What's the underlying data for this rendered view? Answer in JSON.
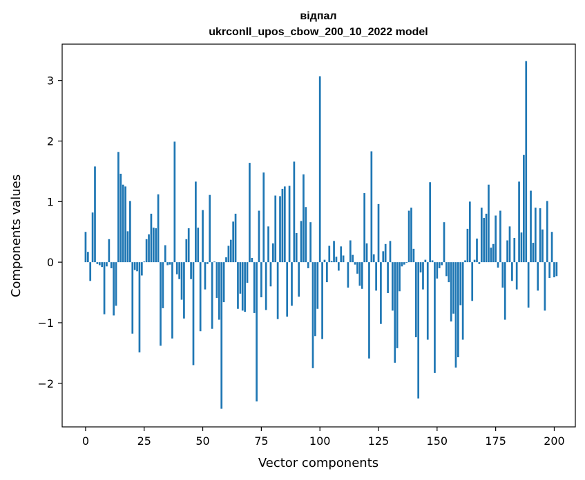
{
  "chart_data": {
    "type": "bar",
    "title": "відпал",
    "subtitle": "ukrconll_upos_cbow_200_10_2022 model",
    "xlabel": "Vector components",
    "ylabel": "Components values",
    "xlim": [
      -10,
      209
    ],
    "ylim": [
      -2.72,
      3.6
    ],
    "xticks": [
      0,
      25,
      50,
      75,
      100,
      125,
      150,
      175,
      200
    ],
    "yticks": [
      -2,
      -1,
      0,
      1,
      2,
      3
    ],
    "ytick_labels": [
      "−2",
      "−1",
      "0",
      "1",
      "2",
      "3"
    ],
    "bar_color": "#1f77b4",
    "grid": false,
    "values": [
      0.5,
      0.17,
      -0.31,
      0.82,
      1.58,
      -0.03,
      -0.05,
      -0.08,
      -0.86,
      -0.07,
      0.38,
      -0.1,
      -0.88,
      -0.72,
      1.82,
      1.46,
      1.28,
      1.25,
      0.51,
      1.01,
      -1.18,
      -0.13,
      -0.15,
      -1.49,
      -0.22,
      0.01,
      0.38,
      0.46,
      0.8,
      0.57,
      0.56,
      1.12,
      -1.38,
      -0.76,
      0.28,
      -0.05,
      -0.04,
      -1.26,
      1.99,
      -0.2,
      -0.28,
      -0.62,
      -0.93,
      0.38,
      0.56,
      -0.28,
      -1.7,
      1.33,
      0.57,
      -1.14,
      0.86,
      -0.45,
      -0.03,
      1.11,
      -1.1,
      0.01,
      -0.59,
      -0.95,
      -2.42,
      -0.66,
      0.08,
      0.27,
      0.37,
      0.67,
      0.8,
      -0.77,
      -0.52,
      -0.8,
      -0.82,
      -0.34,
      1.64,
      0.07,
      -0.84,
      -2.3,
      0.85,
      -0.58,
      1.48,
      -0.79,
      0.59,
      -0.4,
      0.31,
      1.1,
      -0.94,
      1.09,
      1.21,
      1.25,
      -0.9,
      1.26,
      -0.72,
      1.66,
      0.48,
      -0.57,
      0.68,
      1.45,
      0.91,
      -0.1,
      0.66,
      -1.75,
      -1.22,
      -0.77,
      3.07,
      -1.27,
      0.04,
      -0.33,
      0.27,
      0.02,
      0.35,
      0.09,
      -0.14,
      0.26,
      0.11,
      0.0,
      -0.42,
      0.36,
      0.12,
      -0.04,
      -0.19,
      -0.39,
      -0.44,
      1.14,
      0.31,
      -1.59,
      1.83,
      0.13,
      -0.47,
      0.96,
      -1.02,
      0.18,
      0.3,
      -0.51,
      0.35,
      -0.8,
      -1.66,
      -1.42,
      -0.48,
      -0.07,
      -0.04,
      -0.01,
      0.85,
      0.9,
      0.22,
      -1.24,
      -2.25,
      -0.17,
      -0.45,
      0.04,
      -1.28,
      1.32,
      0.03,
      -1.83,
      -0.27,
      -0.1,
      -0.05,
      0.66,
      -0.23,
      -0.33,
      -0.98,
      -0.85,
      -1.74,
      -1.57,
      -0.71,
      -1.28,
      0.03,
      0.55,
      1.0,
      -0.64,
      0.04,
      0.39,
      -0.03,
      0.9,
      0.73,
      0.8,
      1.28,
      0.24,
      0.3,
      0.77,
      -0.09,
      0.85,
      -0.42,
      -0.95,
      0.36,
      0.59,
      -0.31,
      0.4,
      -0.45,
      1.33,
      0.49,
      1.77,
      3.32,
      -0.75,
      1.18,
      0.32,
      0.9,
      -0.47,
      0.89,
      0.54,
      -0.8,
      1.01,
      -0.26,
      0.5,
      -0.25,
      -0.23
    ]
  }
}
